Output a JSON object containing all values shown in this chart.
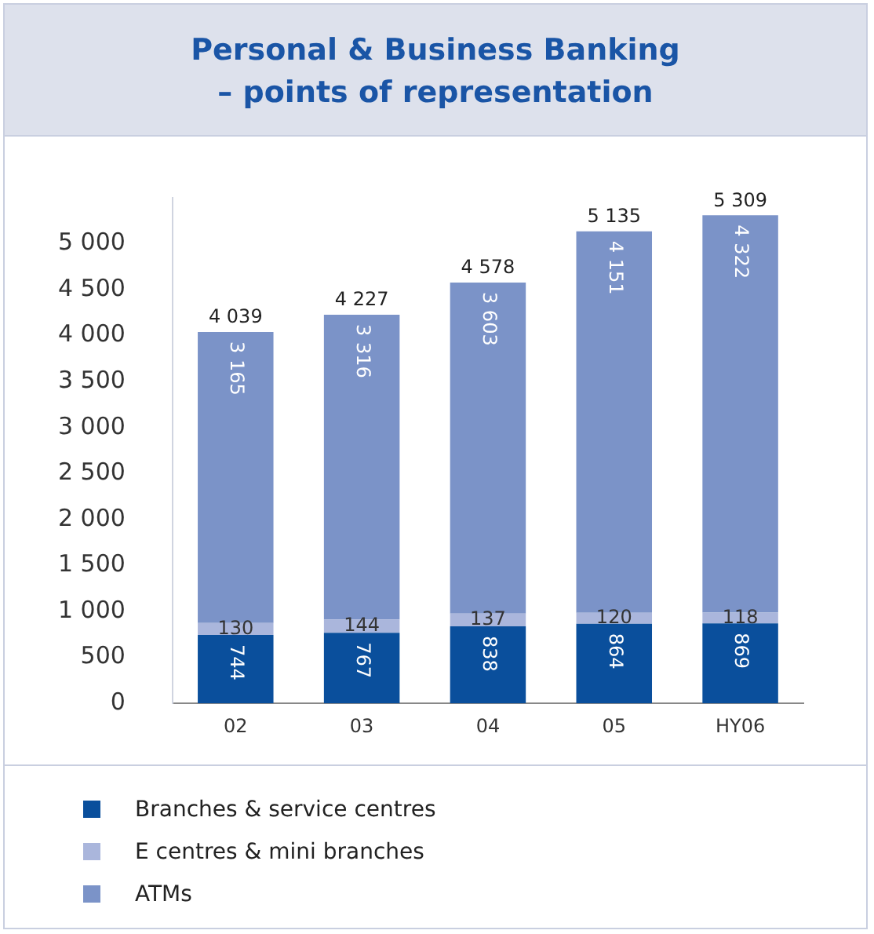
{
  "chart_data": {
    "type": "bar",
    "stacked": true,
    "title": "Personal & Business Banking\n– points of representation",
    "categories": [
      "02",
      "03",
      "04",
      "05",
      "HY06"
    ],
    "series": [
      {
        "name": "Branches & service centres",
        "color": "#0a4f9c",
        "values": [
          744,
          767,
          838,
          864,
          869
        ],
        "value_labels": [
          "744",
          "767",
          "838",
          "864",
          "869"
        ]
      },
      {
        "name": "E centres & mini branches",
        "color": "#aab6dc",
        "values": [
          130,
          144,
          137,
          120,
          118
        ],
        "value_labels": [
          "130",
          "144",
          "137",
          "120",
          "118"
        ]
      },
      {
        "name": "ATMs",
        "color": "#7b93c8",
        "values": [
          3165,
          3316,
          3603,
          4151,
          4322
        ],
        "value_labels": [
          "3 165",
          "3 316",
          "3 603",
          "4 151",
          "4 322"
        ]
      }
    ],
    "totals": [
      "4 039",
      "4 227",
      "4 578",
      "5 135",
      "5 309"
    ],
    "ylim": [
      0,
      5500
    ],
    "yticks": [
      {
        "value": 0,
        "label": "0"
      },
      {
        "value": 500,
        "label": "500"
      },
      {
        "value": 1000,
        "label": "1 000"
      },
      {
        "value": 1500,
        "label": "1 500"
      },
      {
        "value": 2000,
        "label": "2 000"
      },
      {
        "value": 2500,
        "label": "2 500"
      },
      {
        "value": 3000,
        "label": "3 000"
      },
      {
        "value": 3500,
        "label": "3 500"
      },
      {
        "value": 4000,
        "label": "4 000"
      },
      {
        "value": 4500,
        "label": "4 500"
      },
      {
        "value": 5000,
        "label": "5 000"
      }
    ],
    "grid": false,
    "legend": "bottom"
  }
}
